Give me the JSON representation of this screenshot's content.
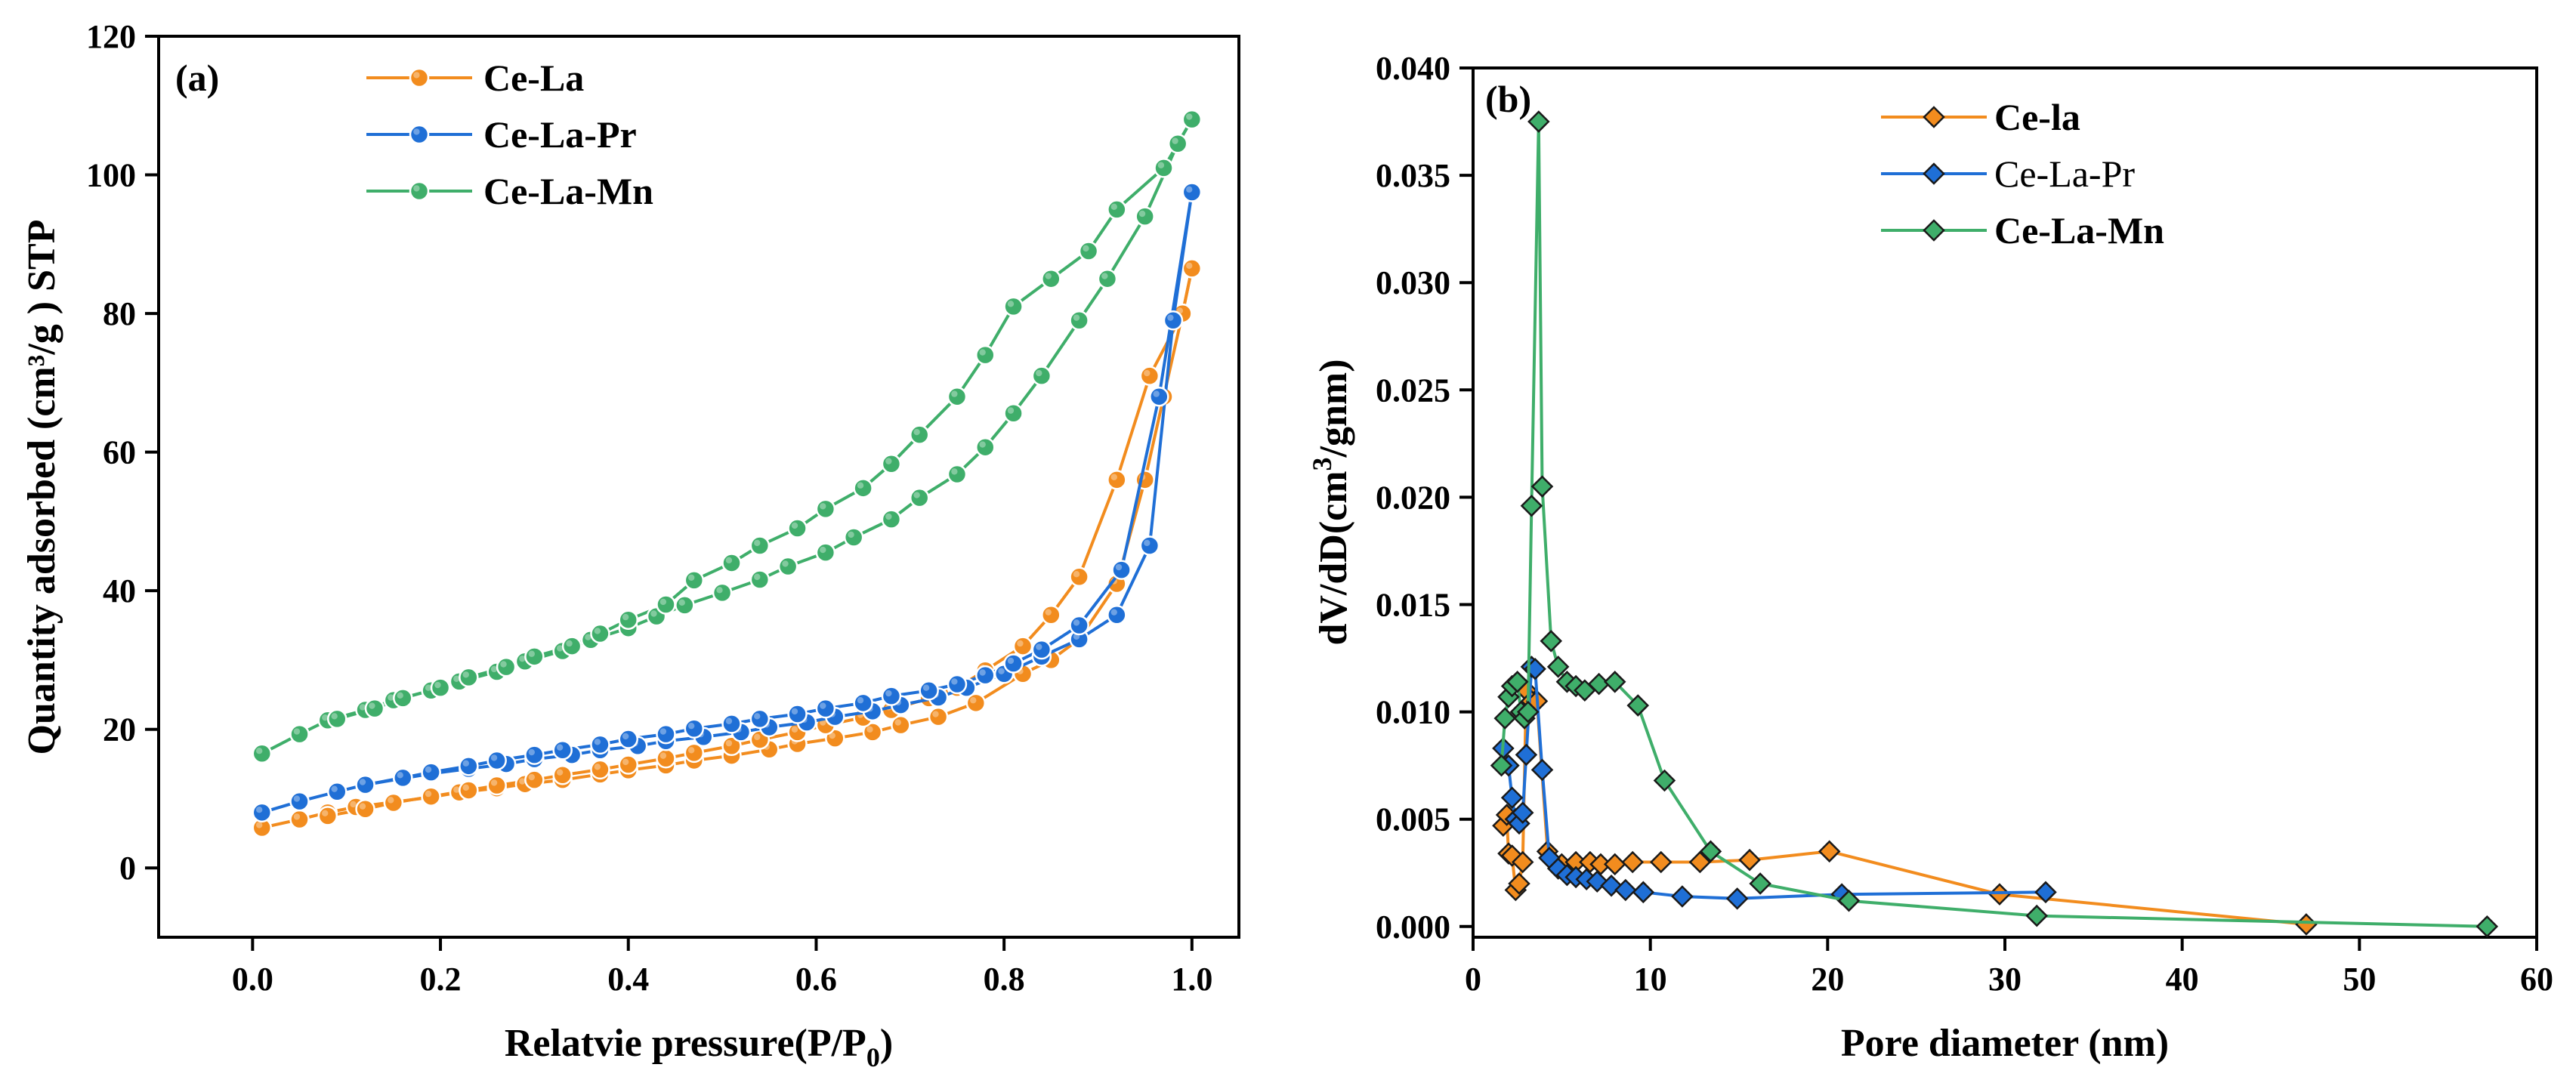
{
  "chart_data": [
    {
      "type": "line",
      "panel_label": "(a)",
      "xlabel_main": "Relatvie pressure(P/P",
      "xlabel_sub": "0",
      "xlabel_end": ")",
      "ylabel": "Quantity adsorbed (cm³/g ) STP",
      "xlim": [
        -0.1,
        1.05
      ],
      "ylim": [
        -10,
        120
      ],
      "xticks": [
        0.0,
        0.2,
        0.4,
        0.6,
        0.8,
        1.0
      ],
      "xtick_labels": [
        "0.0",
        "0.2",
        "0.4",
        "0.6",
        "0.8",
        "1.0"
      ],
      "yticks": [
        0,
        20,
        40,
        60,
        80,
        100,
        120
      ],
      "ytick_labels": [
        "0",
        "20",
        "40",
        "60",
        "80",
        "100",
        "120"
      ],
      "grid": false,
      "legend_position": "top-center",
      "marker": "circle",
      "series": [
        {
          "name": "Ce-La",
          "color": "#f28c1e",
          "legend_bold": true,
          "branches": [
            {
              "x": [
                0.01,
                0.05,
                0.08,
                0.11,
                0.15,
                0.19,
                0.22,
                0.26,
                0.29,
                0.33,
                0.37,
                0.4,
                0.44,
                0.47,
                0.51,
                0.55,
                0.58,
                0.62,
                0.66,
                0.69,
                0.73,
                0.77,
                0.82,
                0.85,
                0.88,
                0.92,
                0.95,
                0.97,
                0.99,
                1.0
              ],
              "y": [
                5.8,
                7.0,
                8.0,
                8.8,
                9.5,
                10.2,
                10.9,
                11.5,
                12.1,
                12.7,
                13.5,
                14.1,
                14.8,
                15.5,
                16.2,
                17.1,
                17.9,
                18.7,
                19.6,
                20.6,
                21.8,
                23.8,
                28.0,
                30.0,
                33.0,
                41.0,
                56.0,
                68.0,
                80.0,
                86.5
              ]
            },
            {
              "x": [
                1.0,
                0.99,
                0.955,
                0.92,
                0.88,
                0.85,
                0.82,
                0.78,
                0.75,
                0.72,
                0.68,
                0.65,
                0.61,
                0.58,
                0.54,
                0.51,
                0.47,
                0.44,
                0.4,
                0.37,
                0.33,
                0.3,
                0.26,
                0.23,
                0.19,
                0.15,
                0.12,
                0.08
              ],
              "y": [
                86.5,
                80.0,
                71.0,
                56.0,
                42.0,
                36.5,
                32.0,
                28.5,
                26.0,
                24.5,
                22.8,
                21.7,
                20.6,
                19.6,
                18.5,
                17.6,
                16.6,
                15.8,
                14.9,
                14.2,
                13.4,
                12.7,
                11.9,
                11.2,
                10.3,
                9.4,
                8.5,
                7.5
              ]
            }
          ]
        },
        {
          "name": "Ce-La-Pr",
          "color": "#1f6fd6",
          "legend_bold": true,
          "branches": [
            {
              "x": [
                0.01,
                0.05,
                0.09,
                0.12,
                0.16,
                0.19,
                0.23,
                0.27,
                0.3,
                0.34,
                0.37,
                0.41,
                0.44,
                0.48,
                0.52,
                0.55,
                0.59,
                0.62,
                0.66,
                0.69,
                0.73,
                0.76,
                0.8,
                0.84,
                0.88,
                0.92,
                0.955,
                0.98,
                1.0
              ],
              "y": [
                8.0,
                9.6,
                11.0,
                12.0,
                12.9,
                13.6,
                14.3,
                15.0,
                15.7,
                16.3,
                17.0,
                17.6,
                18.3,
                18.9,
                19.6,
                20.3,
                21.0,
                21.8,
                22.6,
                23.5,
                24.6,
                26.0,
                28.0,
                30.5,
                33.0,
                36.5,
                46.5,
                79.0,
                97.5
              ]
            },
            {
              "x": [
                1.0,
                0.965,
                0.925,
                0.88,
                0.84,
                0.81,
                0.78,
                0.75,
                0.72,
                0.68,
                0.65,
                0.61,
                0.58,
                0.54,
                0.51,
                0.47,
                0.44,
                0.4,
                0.37,
                0.33,
                0.3,
                0.26,
                0.23,
                0.19,
                0.16,
                0.12
              ],
              "y": [
                97.5,
                68.0,
                43.0,
                35.0,
                31.5,
                29.5,
                27.8,
                26.5,
                25.6,
                24.8,
                23.8,
                23.0,
                22.2,
                21.5,
                20.8,
                20.1,
                19.3,
                18.6,
                17.8,
                17.0,
                16.3,
                15.5,
                14.7,
                13.8,
                13.0,
                12.0
              ]
            }
          ]
        },
        {
          "name": "Ce-La-Mn",
          "color": "#3fae6a",
          "legend_bold": true,
          "branches": [
            {
              "x": [
                0.01,
                0.05,
                0.08,
                0.12,
                0.15,
                0.19,
                0.22,
                0.26,
                0.29,
                0.33,
                0.36,
                0.4,
                0.43,
                0.46,
                0.5,
                0.54,
                0.57,
                0.61,
                0.64,
                0.68,
                0.71,
                0.75,
                0.78,
                0.81,
                0.84,
                0.88,
                0.91,
                0.95,
                0.985,
                1.0
              ],
              "y": [
                16.5,
                19.3,
                21.3,
                22.8,
                24.2,
                25.6,
                26.9,
                28.3,
                29.8,
                31.3,
                32.9,
                34.6,
                36.3,
                37.9,
                39.7,
                41.6,
                43.5,
                45.5,
                47.7,
                50.3,
                53.4,
                56.8,
                60.7,
                65.6,
                71.0,
                79.0,
                85.0,
                94.0,
                104.5,
                108.0
              ]
            },
            {
              "x": [
                1.0,
                0.97,
                0.92,
                0.89,
                0.85,
                0.81,
                0.78,
                0.75,
                0.71,
                0.68,
                0.65,
                0.61,
                0.58,
                0.54,
                0.51,
                0.47,
                0.44,
                0.4,
                0.37,
                0.34,
                0.3,
                0.27,
                0.23,
                0.2,
                0.16,
                0.13,
                0.09
              ],
              "y": [
                108.0,
                101.0,
                95.0,
                89.0,
                85.0,
                81.0,
                74.0,
                68.0,
                62.5,
                58.3,
                54.8,
                51.8,
                49.0,
                46.5,
                44.0,
                41.5,
                38.0,
                35.8,
                33.8,
                32.0,
                30.5,
                29.0,
                27.5,
                26.0,
                24.5,
                23.0,
                21.5
              ]
            }
          ]
        }
      ]
    },
    {
      "type": "line",
      "panel_label": "(b)",
      "xlabel": "Pore diameter (nm)",
      "ylabel_main": "dV/dD(cm",
      "ylabel_sup": "3",
      "ylabel_end": "/gnm)",
      "xlim": [
        0,
        60
      ],
      "ylim": [
        -0.0005,
        0.04
      ],
      "xticks": [
        0,
        10,
        20,
        30,
        40,
        50,
        60
      ],
      "xtick_labels": [
        "0",
        "10",
        "20",
        "30",
        "40",
        "50",
        "60"
      ],
      "yticks": [
        0,
        0.005,
        0.01,
        0.015,
        0.02,
        0.025,
        0.03,
        0.035,
        0.04
      ],
      "ytick_labels": [
        "0.000",
        "0.005",
        "0.010",
        "0.015",
        "0.020",
        "0.025",
        "0.030",
        "0.035",
        "0.040"
      ],
      "grid": false,
      "legend_position": "top-center",
      "marker": "diamond",
      "series": [
        {
          "name": "Ce-la",
          "color": "#f28c1e",
          "legend_bold": true,
          "x": [
            1.7,
            1.9,
            2.0,
            2.2,
            2.4,
            2.6,
            2.8,
            3.0,
            3.3,
            3.6,
            4.2,
            5.0,
            5.8,
            6.6,
            7.2,
            8.0,
            9.0,
            10.6,
            12.8,
            15.6,
            20.1,
            29.7,
            47.0
          ],
          "y": [
            0.0047,
            0.0052,
            0.0034,
            0.0033,
            0.0017,
            0.002,
            0.003,
            0.011,
            0.0105,
            0.0105,
            0.0035,
            0.0029,
            0.003,
            0.003,
            0.0029,
            0.0029,
            0.003,
            0.003,
            0.003,
            0.0031,
            0.0035,
            0.0015,
            0.0001
          ]
        },
        {
          "name": "Ce-La-Pr",
          "color": "#1f6fd6",
          "legend_bold": false,
          "x": [
            1.7,
            2.0,
            2.2,
            2.4,
            2.6,
            2.8,
            3.0,
            3.3,
            3.5,
            3.9,
            4.3,
            4.8,
            5.3,
            5.8,
            6.4,
            7.0,
            7.8,
            8.6,
            9.6,
            11.8,
            14.9,
            20.8,
            32.3
          ],
          "y": [
            0.0083,
            0.0075,
            0.006,
            0.005,
            0.0048,
            0.0053,
            0.008,
            0.0121,
            0.012,
            0.0073,
            0.0032,
            0.0027,
            0.0024,
            0.0023,
            0.0022,
            0.0021,
            0.0019,
            0.0017,
            0.0016,
            0.0014,
            0.0013,
            0.0015,
            0.0016
          ]
        },
        {
          "name": "Ce-La-Mn",
          "color": "#3fae6a",
          "legend_bold": true,
          "x": [
            1.6,
            1.8,
            2.0,
            2.2,
            2.5,
            2.7,
            2.9,
            3.1,
            3.3,
            3.7,
            3.9,
            4.4,
            4.8,
            5.3,
            5.8,
            6.3,
            7.1,
            8.0,
            9.3,
            10.8,
            13.4,
            16.2,
            21.2,
            31.8,
            57.2
          ],
          "y": [
            0.0075,
            0.0097,
            0.0107,
            0.0112,
            0.0114,
            0.01,
            0.0097,
            0.01,
            0.0196,
            0.0375,
            0.0205,
            0.0133,
            0.0121,
            0.0114,
            0.0112,
            0.011,
            0.0113,
            0.0114,
            0.0103,
            0.0068,
            0.0035,
            0.002,
            0.0012,
            0.0005,
            0.0
          ]
        }
      ]
    }
  ]
}
